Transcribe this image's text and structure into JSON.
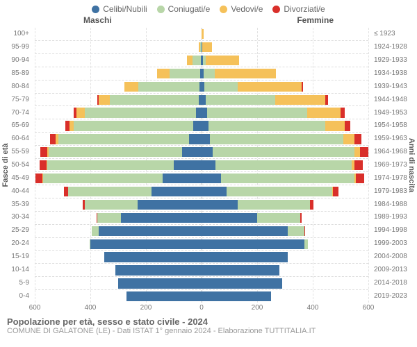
{
  "legend": [
    {
      "label": "Celibi/Nubili",
      "color": "#3f72a3"
    },
    {
      "label": "Coniugati/e",
      "color": "#b8d6a8"
    },
    {
      "label": "Vedovi/e",
      "color": "#f5c15a"
    },
    {
      "label": "Divorziati/e",
      "color": "#d92f2a"
    }
  ],
  "headers": {
    "male": "Maschi",
    "female": "Femmine"
  },
  "y_left_title": "Fasce di età",
  "y_right_title": "Anni di nascita",
  "x_ticks": [
    600,
    400,
    200,
    0,
    200,
    400,
    600
  ],
  "x_max": 600,
  "footer_title": "Popolazione per età, sesso e stato civile - 2024",
  "footer_sub": "COMUNE DI GALATONE (LE) - Dati ISTAT 1° gennaio 2024 - Elaborazione TUTTITALIA.IT",
  "colors": {
    "celibi": "#3f72a3",
    "coniugati": "#b8d6a8",
    "vedovi": "#f5c15a",
    "divorziati": "#d92f2a"
  },
  "rows": [
    {
      "age": "100+",
      "birth": "≤ 1923",
      "m": {
        "c": 0,
        "co": 0,
        "v": 0,
        "d": 0
      },
      "f": {
        "c": 0,
        "co": 0,
        "v": 8,
        "d": 0
      }
    },
    {
      "age": "95-99",
      "birth": "1924-1928",
      "m": {
        "c": 0,
        "co": 5,
        "v": 5,
        "d": 0
      },
      "f": {
        "c": 2,
        "co": 0,
        "v": 35,
        "d": 0
      }
    },
    {
      "age": "90-94",
      "birth": "1929-1933",
      "m": {
        "c": 3,
        "co": 30,
        "v": 20,
        "d": 0
      },
      "f": {
        "c": 5,
        "co": 10,
        "v": 120,
        "d": 0
      }
    },
    {
      "age": "85-89",
      "birth": "1934-1938",
      "m": {
        "c": 5,
        "co": 110,
        "v": 45,
        "d": 0
      },
      "f": {
        "c": 8,
        "co": 40,
        "v": 220,
        "d": 0
      }
    },
    {
      "age": "80-84",
      "birth": "1939-1943",
      "m": {
        "c": 8,
        "co": 220,
        "v": 50,
        "d": 0
      },
      "f": {
        "c": 10,
        "co": 120,
        "v": 230,
        "d": 5
      }
    },
    {
      "age": "75-79",
      "birth": "1944-1948",
      "m": {
        "c": 10,
        "co": 320,
        "v": 40,
        "d": 5
      },
      "f": {
        "c": 15,
        "co": 250,
        "v": 180,
        "d": 10
      }
    },
    {
      "age": "70-74",
      "birth": "1949-1953",
      "m": {
        "c": 20,
        "co": 400,
        "v": 30,
        "d": 10
      },
      "f": {
        "c": 20,
        "co": 360,
        "v": 120,
        "d": 15
      }
    },
    {
      "age": "65-69",
      "birth": "1954-1958",
      "m": {
        "c": 30,
        "co": 430,
        "v": 15,
        "d": 15
      },
      "f": {
        "c": 25,
        "co": 420,
        "v": 70,
        "d": 20
      }
    },
    {
      "age": "60-64",
      "birth": "1959-1963",
      "m": {
        "c": 45,
        "co": 470,
        "v": 10,
        "d": 20
      },
      "f": {
        "c": 30,
        "co": 480,
        "v": 40,
        "d": 25
      }
    },
    {
      "age": "55-59",
      "birth": "1964-1968",
      "m": {
        "c": 70,
        "co": 480,
        "v": 5,
        "d": 25
      },
      "f": {
        "c": 40,
        "co": 510,
        "v": 20,
        "d": 30
      }
    },
    {
      "age": "50-54",
      "birth": "1969-1973",
      "m": {
        "c": 100,
        "co": 455,
        "v": 3,
        "d": 25
      },
      "f": {
        "c": 50,
        "co": 490,
        "v": 10,
        "d": 30
      }
    },
    {
      "age": "45-49",
      "birth": "1974-1978",
      "m": {
        "c": 140,
        "co": 430,
        "v": 2,
        "d": 25
      },
      "f": {
        "c": 70,
        "co": 480,
        "v": 5,
        "d": 30
      }
    },
    {
      "age": "40-44",
      "birth": "1979-1983",
      "m": {
        "c": 180,
        "co": 300,
        "v": 0,
        "d": 15
      },
      "f": {
        "c": 90,
        "co": 380,
        "v": 2,
        "d": 20
      }
    },
    {
      "age": "35-39",
      "birth": "1984-1988",
      "m": {
        "c": 230,
        "co": 190,
        "v": 0,
        "d": 8
      },
      "f": {
        "c": 130,
        "co": 260,
        "v": 0,
        "d": 12
      }
    },
    {
      "age": "30-34",
      "birth": "1989-1993",
      "m": {
        "c": 290,
        "co": 85,
        "v": 0,
        "d": 3
      },
      "f": {
        "c": 200,
        "co": 155,
        "v": 0,
        "d": 5
      }
    },
    {
      "age": "25-29",
      "birth": "1994-1998",
      "m": {
        "c": 370,
        "co": 25,
        "v": 0,
        "d": 0
      },
      "f": {
        "c": 310,
        "co": 60,
        "v": 0,
        "d": 2
      }
    },
    {
      "age": "20-24",
      "birth": "1999-2003",
      "m": {
        "c": 400,
        "co": 3,
        "v": 0,
        "d": 0
      },
      "f": {
        "c": 370,
        "co": 12,
        "v": 0,
        "d": 0
      }
    },
    {
      "age": "15-19",
      "birth": "2004-2008",
      "m": {
        "c": 350,
        "co": 0,
        "v": 0,
        "d": 0
      },
      "f": {
        "c": 310,
        "co": 0,
        "v": 0,
        "d": 0
      }
    },
    {
      "age": "10-14",
      "birth": "2009-2013",
      "m": {
        "c": 310,
        "co": 0,
        "v": 0,
        "d": 0
      },
      "f": {
        "c": 280,
        "co": 0,
        "v": 0,
        "d": 0
      }
    },
    {
      "age": "5-9",
      "birth": "2014-2018",
      "m": {
        "c": 300,
        "co": 0,
        "v": 0,
        "d": 0
      },
      "f": {
        "c": 290,
        "co": 0,
        "v": 0,
        "d": 0
      }
    },
    {
      "age": "0-4",
      "birth": "2019-2023",
      "m": {
        "c": 270,
        "co": 0,
        "v": 0,
        "d": 0
      },
      "f": {
        "c": 250,
        "co": 0,
        "v": 0,
        "d": 0
      }
    }
  ]
}
